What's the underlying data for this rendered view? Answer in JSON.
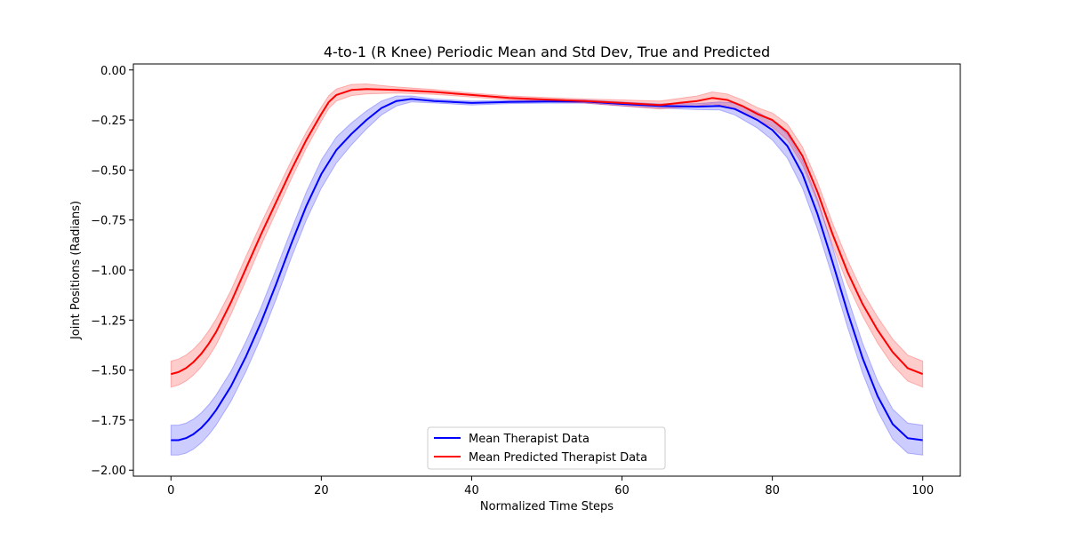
{
  "chart_data": {
    "type": "line",
    "title": "4-to-1 (R Knee) Periodic Mean and Std Dev, True and Predicted",
    "xlabel": "Normalized Time Steps",
    "ylabel": "Joint Positions (Radians)",
    "xlim": [
      -5,
      105
    ],
    "ylim": [
      -2.03,
      0.03
    ],
    "xticks": [
      0,
      20,
      40,
      60,
      80,
      100
    ],
    "xtick_labels": [
      "0",
      "20",
      "40",
      "60",
      "80",
      "100"
    ],
    "yticks": [
      0.0,
      -0.25,
      -0.5,
      -0.75,
      -1.0,
      -1.25,
      -1.5,
      -1.75,
      -2.0
    ],
    "ytick_labels": [
      "0.00",
      "−0.25",
      "−0.50",
      "−0.75",
      "−1.00",
      "−1.25",
      "−1.50",
      "−1.75",
      "−2.00"
    ],
    "grid": false,
    "legend_position": "lower center",
    "series": [
      {
        "name": "Mean Therapist Data",
        "color": "#0000ff",
        "band_color": "#0000ff",
        "x": [
          0,
          1,
          2,
          3,
          4,
          5,
          6,
          8,
          10,
          12,
          14,
          16,
          18,
          20,
          22,
          24,
          26,
          28,
          30,
          32,
          35,
          40,
          45,
          50,
          55,
          60,
          65,
          70,
          73,
          75,
          78,
          80,
          82,
          84,
          86,
          88,
          90,
          92,
          94,
          96,
          98,
          100
        ],
        "mean": [
          -1.85,
          -1.85,
          -1.84,
          -1.82,
          -1.79,
          -1.75,
          -1.7,
          -1.58,
          -1.43,
          -1.26,
          -1.07,
          -0.87,
          -0.68,
          -0.52,
          -0.4,
          -0.32,
          -0.25,
          -0.19,
          -0.155,
          -0.145,
          -0.155,
          -0.165,
          -0.16,
          -0.158,
          -0.158,
          -0.17,
          -0.18,
          -0.183,
          -0.18,
          -0.195,
          -0.25,
          -0.3,
          -0.38,
          -0.52,
          -0.72,
          -0.96,
          -1.21,
          -1.44,
          -1.63,
          -1.77,
          -1.84,
          -1.85
        ],
        "std": [
          0.075,
          0.075,
          0.075,
          0.075,
          0.075,
          0.075,
          0.075,
          0.075,
          0.075,
          0.075,
          0.075,
          0.07,
          0.07,
          0.07,
          0.065,
          0.055,
          0.045,
          0.035,
          0.025,
          0.015,
          0.01,
          0.01,
          0.008,
          0.008,
          0.008,
          0.01,
          0.01,
          0.015,
          0.02,
          0.03,
          0.04,
          0.05,
          0.06,
          0.07,
          0.075,
          0.075,
          0.075,
          0.075,
          0.075,
          0.075,
          0.075,
          0.075
        ]
      },
      {
        "name": "Mean Predicted Therapist Data",
        "color": "#ff0000",
        "band_color": "#ff0000",
        "x": [
          0,
          1,
          2,
          3,
          4,
          5,
          6,
          8,
          10,
          12,
          14,
          16,
          18,
          20,
          21,
          22,
          24,
          26,
          28,
          30,
          35,
          40,
          45,
          50,
          55,
          60,
          65,
          70,
          72,
          74,
          76,
          78,
          80,
          82,
          84,
          86,
          88,
          90,
          92,
          94,
          96,
          98,
          100
        ],
        "mean": [
          -1.52,
          -1.51,
          -1.49,
          -1.46,
          -1.42,
          -1.37,
          -1.31,
          -1.16,
          -0.99,
          -0.82,
          -0.66,
          -0.5,
          -0.35,
          -0.22,
          -0.16,
          -0.125,
          -0.1,
          -0.095,
          -0.098,
          -0.1,
          -0.11,
          -0.125,
          -0.14,
          -0.148,
          -0.155,
          -0.165,
          -0.175,
          -0.155,
          -0.14,
          -0.15,
          -0.18,
          -0.22,
          -0.25,
          -0.31,
          -0.43,
          -0.61,
          -0.82,
          -1.01,
          -1.17,
          -1.3,
          -1.41,
          -1.49,
          -1.52
        ],
        "std": [
          0.065,
          0.065,
          0.065,
          0.065,
          0.065,
          0.065,
          0.065,
          0.06,
          0.06,
          0.055,
          0.05,
          0.045,
          0.04,
          0.035,
          0.032,
          0.03,
          0.028,
          0.025,
          0.02,
          0.015,
          0.012,
          0.01,
          0.01,
          0.01,
          0.01,
          0.015,
          0.02,
          0.025,
          0.03,
          0.03,
          0.03,
          0.032,
          0.035,
          0.04,
          0.045,
          0.05,
          0.055,
          0.06,
          0.06,
          0.065,
          0.065,
          0.065,
          0.065
        ]
      }
    ]
  }
}
